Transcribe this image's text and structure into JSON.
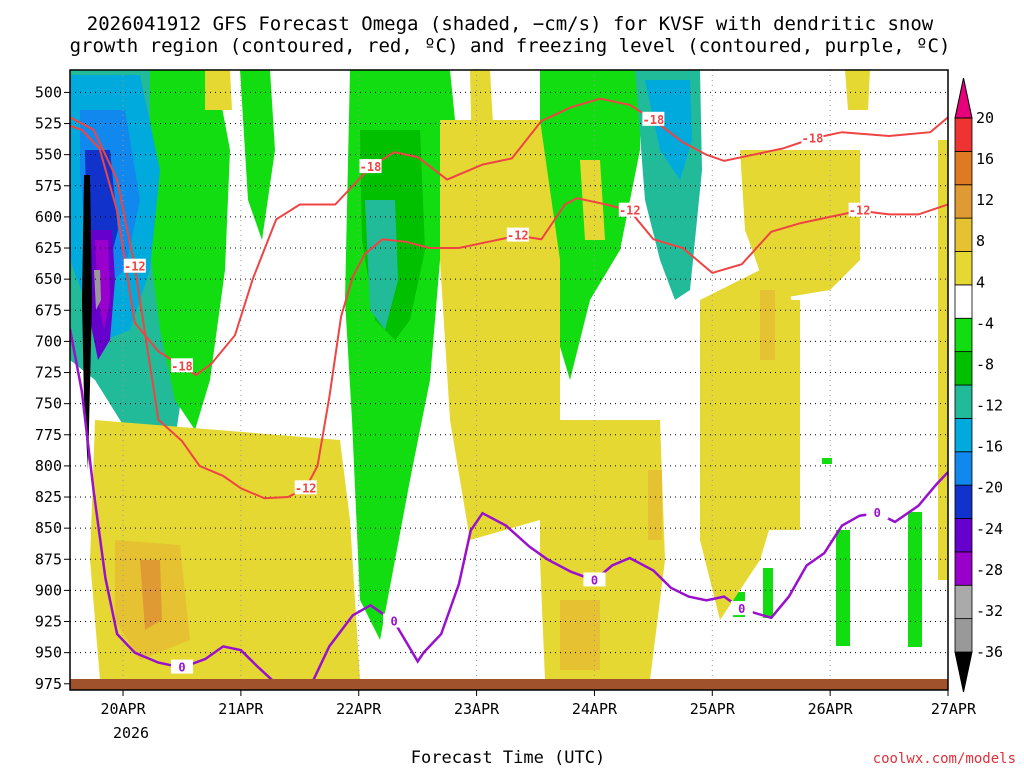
{
  "title_line1": "2026041912 GFS Forecast Omega (shaded, −cm/s) for KVSF with dendritic snow",
  "title_line2": "growth region (contoured, red, ºC) and freezing level (contoured, purple, ºC)",
  "credit": "coolwx.com/models",
  "chart_data": {
    "type": "heatmap",
    "title": "2026041912 GFS Forecast Omega (shaded, −cm/s) for KVSF with dendritic snow growth region (contoured, red, ºC) and freezing level (contoured, purple, ºC)",
    "xlabel": "Forecast Time (UTC)",
    "ylabel": "",
    "x_ticks": [
      "20APR",
      "21APR",
      "22APR",
      "23APR",
      "24APR",
      "25APR",
      "26APR",
      "27APR"
    ],
    "x_tick_days": [
      1,
      2,
      3,
      4,
      5,
      6,
      7,
      8
    ],
    "x_sublabel": "2026",
    "xlim_days": [
      0.55,
      8.0
    ],
    "y_ticks": [
      500,
      525,
      550,
      575,
      600,
      625,
      650,
      675,
      700,
      725,
      750,
      775,
      800,
      825,
      850,
      875,
      900,
      925,
      950,
      975
    ],
    "ylim_hpa": [
      482,
      980
    ],
    "colorbar": {
      "colors": [
        "#000000",
        "#999999",
        "#aaaaaa",
        "#9900cc",
        "#6600cc",
        "#1133cc",
        "#1188ee",
        "#00aadd",
        "#22bb99",
        "#00c000",
        "#11dd11",
        "#ffffff",
        "#e6d833",
        "#e6c233",
        "#e09a33",
        "#e07a22",
        "#ee3333",
        "#e6007a"
      ],
      "labels": [
        "-36",
        "-32",
        "-28",
        "-24",
        "-20",
        "-16",
        "-12",
        "-8",
        "-4",
        "4",
        "8",
        "12",
        "16",
        "20"
      ]
    },
    "contours": {
      "dgz_upper_minus18": {
        "label": "-18",
        "points": [
          [
            0.55,
            527
          ],
          [
            0.65,
            530
          ],
          [
            0.8,
            545
          ],
          [
            0.95,
            595
          ],
          [
            1.1,
            685
          ],
          [
            1.3,
            708
          ],
          [
            1.5,
            720
          ],
          [
            1.62,
            727
          ],
          [
            1.75,
            718
          ],
          [
            1.95,
            695
          ],
          [
            2.1,
            650
          ],
          [
            2.3,
            602
          ],
          [
            2.5,
            590
          ],
          [
            2.8,
            590
          ],
          [
            3.1,
            560
          ],
          [
            3.3,
            548
          ],
          [
            3.5,
            552
          ],
          [
            3.75,
            570
          ],
          [
            4.05,
            558
          ],
          [
            4.3,
            553
          ],
          [
            4.55,
            523
          ],
          [
            4.8,
            512
          ],
          [
            5.05,
            505
          ],
          [
            5.3,
            510
          ],
          [
            5.5,
            522
          ],
          [
            5.75,
            540
          ],
          [
            5.95,
            550
          ],
          [
            6.1,
            555
          ],
          [
            6.35,
            550
          ],
          [
            6.6,
            545
          ],
          [
            6.85,
            537
          ],
          [
            7.1,
            532
          ],
          [
            7.5,
            535
          ],
          [
            7.85,
            532
          ],
          [
            8.0,
            520
          ]
        ]
      },
      "dgz_lower_minus12": {
        "label": "-12",
        "points": [
          [
            0.55,
            520
          ],
          [
            0.75,
            530
          ],
          [
            0.95,
            570
          ],
          [
            1.1,
            640
          ],
          [
            1.3,
            763
          ],
          [
            1.5,
            780
          ],
          [
            1.65,
            800
          ],
          [
            1.85,
            808
          ],
          [
            2.0,
            818
          ],
          [
            2.2,
            826
          ],
          [
            2.4,
            825
          ],
          [
            2.55,
            818
          ],
          [
            2.65,
            800
          ],
          [
            2.75,
            745
          ],
          [
            2.85,
            680
          ],
          [
            2.95,
            648
          ],
          [
            3.05,
            630
          ],
          [
            3.2,
            618
          ],
          [
            3.4,
            620
          ],
          [
            3.6,
            625
          ],
          [
            3.85,
            625
          ],
          [
            4.1,
            620
          ],
          [
            4.35,
            615
          ],
          [
            4.55,
            618
          ],
          [
            4.75,
            590
          ],
          [
            4.85,
            585
          ],
          [
            5.1,
            590
          ],
          [
            5.3,
            595
          ],
          [
            5.5,
            618
          ],
          [
            5.75,
            625
          ],
          [
            6.0,
            645
          ],
          [
            6.25,
            638
          ],
          [
            6.5,
            612
          ],
          [
            6.75,
            605
          ],
          [
            7.0,
            600
          ],
          [
            7.25,
            595
          ],
          [
            7.5,
            598
          ],
          [
            7.75,
            598
          ],
          [
            8.0,
            590
          ]
        ]
      },
      "freezing_level_0C": {
        "label": "0",
        "points": [
          [
            0.55,
            690
          ],
          [
            0.65,
            740
          ],
          [
            0.75,
            820
          ],
          [
            0.85,
            890
          ],
          [
            0.95,
            935
          ],
          [
            1.1,
            950
          ],
          [
            1.3,
            958
          ],
          [
            1.5,
            962
          ],
          [
            1.7,
            955
          ],
          [
            1.85,
            945
          ],
          [
            2.0,
            948
          ],
          [
            2.15,
            962
          ],
          [
            2.3,
            975
          ],
          [
            2.45,
            982
          ],
          [
            2.6,
            975
          ],
          [
            2.75,
            945
          ],
          [
            2.95,
            920
          ],
          [
            3.1,
            912
          ],
          [
            3.3,
            925
          ],
          [
            3.5,
            957
          ],
          [
            3.55,
            950
          ],
          [
            3.7,
            935
          ],
          [
            3.85,
            895
          ],
          [
            3.95,
            852
          ],
          [
            4.05,
            838
          ],
          [
            4.25,
            848
          ],
          [
            4.45,
            865
          ],
          [
            4.6,
            875
          ],
          [
            4.8,
            885
          ],
          [
            5.0,
            892
          ],
          [
            5.15,
            880
          ],
          [
            5.3,
            874
          ],
          [
            5.5,
            884
          ],
          [
            5.65,
            898
          ],
          [
            5.8,
            905
          ],
          [
            5.95,
            908
          ],
          [
            6.1,
            905
          ],
          [
            6.25,
            915
          ],
          [
            6.5,
            922
          ],
          [
            6.65,
            905
          ],
          [
            6.8,
            880
          ],
          [
            6.95,
            870
          ],
          [
            7.1,
            848
          ],
          [
            7.25,
            840
          ],
          [
            7.4,
            838
          ],
          [
            7.55,
            845
          ],
          [
            7.75,
            832
          ],
          [
            7.9,
            815
          ],
          [
            8.0,
            805
          ]
        ]
      }
    },
    "omega_regions_note": "Shaded omega values: green/cyan/blue (rising, -4 to -36) in upper levels early and at 22APR & 24APR; yellow/orange (sinking, 4 to 12) widespread in lower levels"
  }
}
